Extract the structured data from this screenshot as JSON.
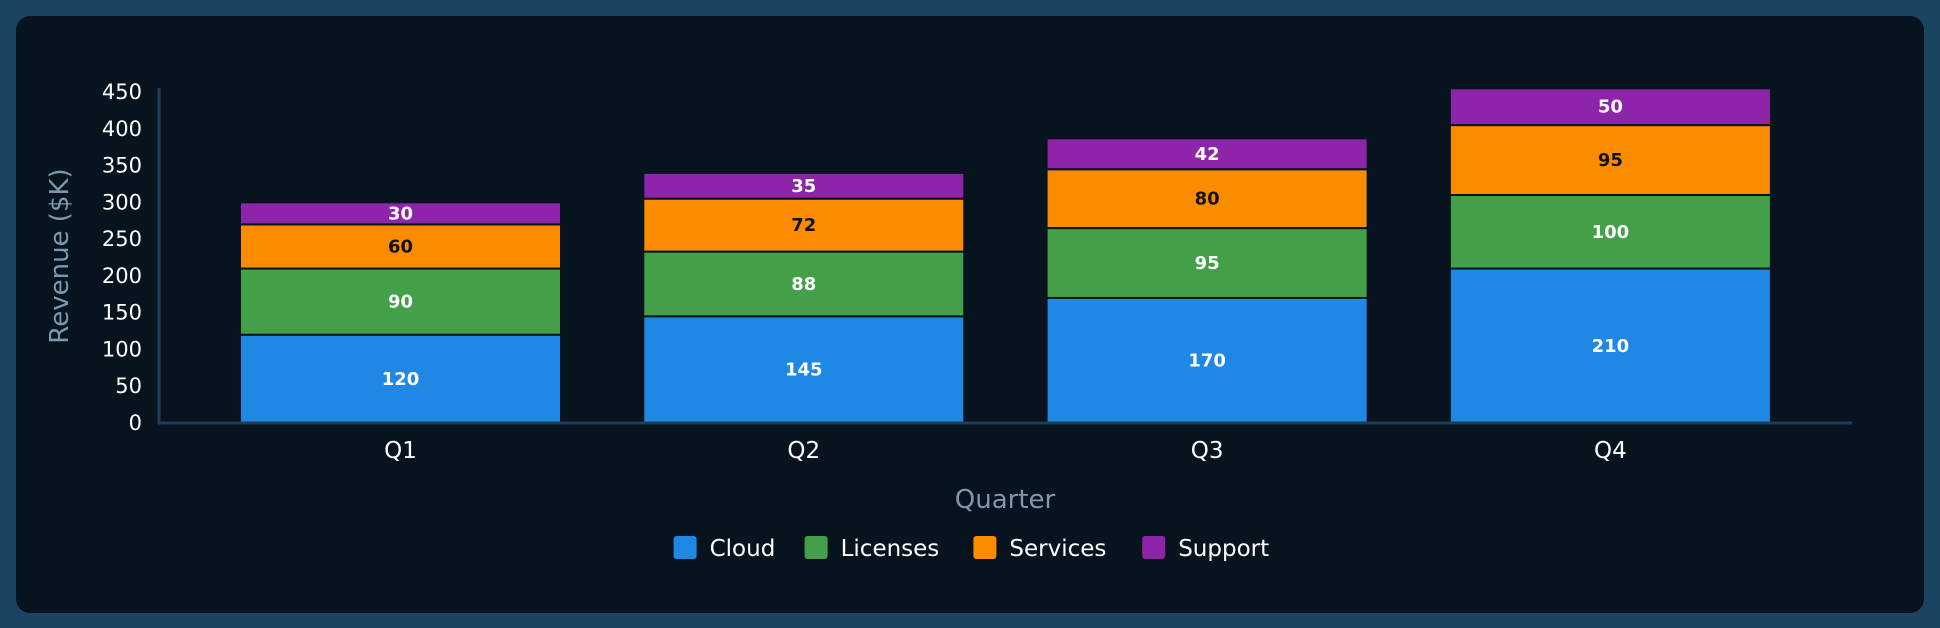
{
  "chart_data": {
    "type": "bar",
    "stacked": true,
    "categories": [
      "Q1",
      "Q2",
      "Q3",
      "Q4"
    ],
    "series": [
      {
        "name": "Cloud",
        "color": "#1f88e5",
        "label_color": "#ffffff",
        "values": [
          120,
          145,
          170,
          210
        ]
      },
      {
        "name": "Licenses",
        "color": "#43a048",
        "label_color": "#ffffff",
        "values": [
          90,
          88,
          95,
          100
        ]
      },
      {
        "name": "Services",
        "color": "#fb8c00",
        "label_color": "#111111",
        "values": [
          60,
          72,
          80,
          95
        ]
      },
      {
        "name": "Support",
        "color": "#8e24aa",
        "label_color": "#ffffff",
        "values": [
          30,
          35,
          42,
          50
        ]
      }
    ],
    "title": "",
    "xlabel": "Quarter",
    "ylabel": "Revenue ($K)",
    "ylim": [
      0,
      450
    ],
    "yticks": [
      0,
      50,
      100,
      150,
      200,
      250,
      300,
      350,
      400,
      450
    ],
    "grid": false,
    "legend_position": "bottom-center",
    "colors": {
      "background": "#1a4560",
      "panel": "#07141f",
      "axis": "#1d3d58",
      "text": "#ffffff",
      "axis_title": "#7d98ad",
      "segment_border": "#07141f"
    }
  }
}
